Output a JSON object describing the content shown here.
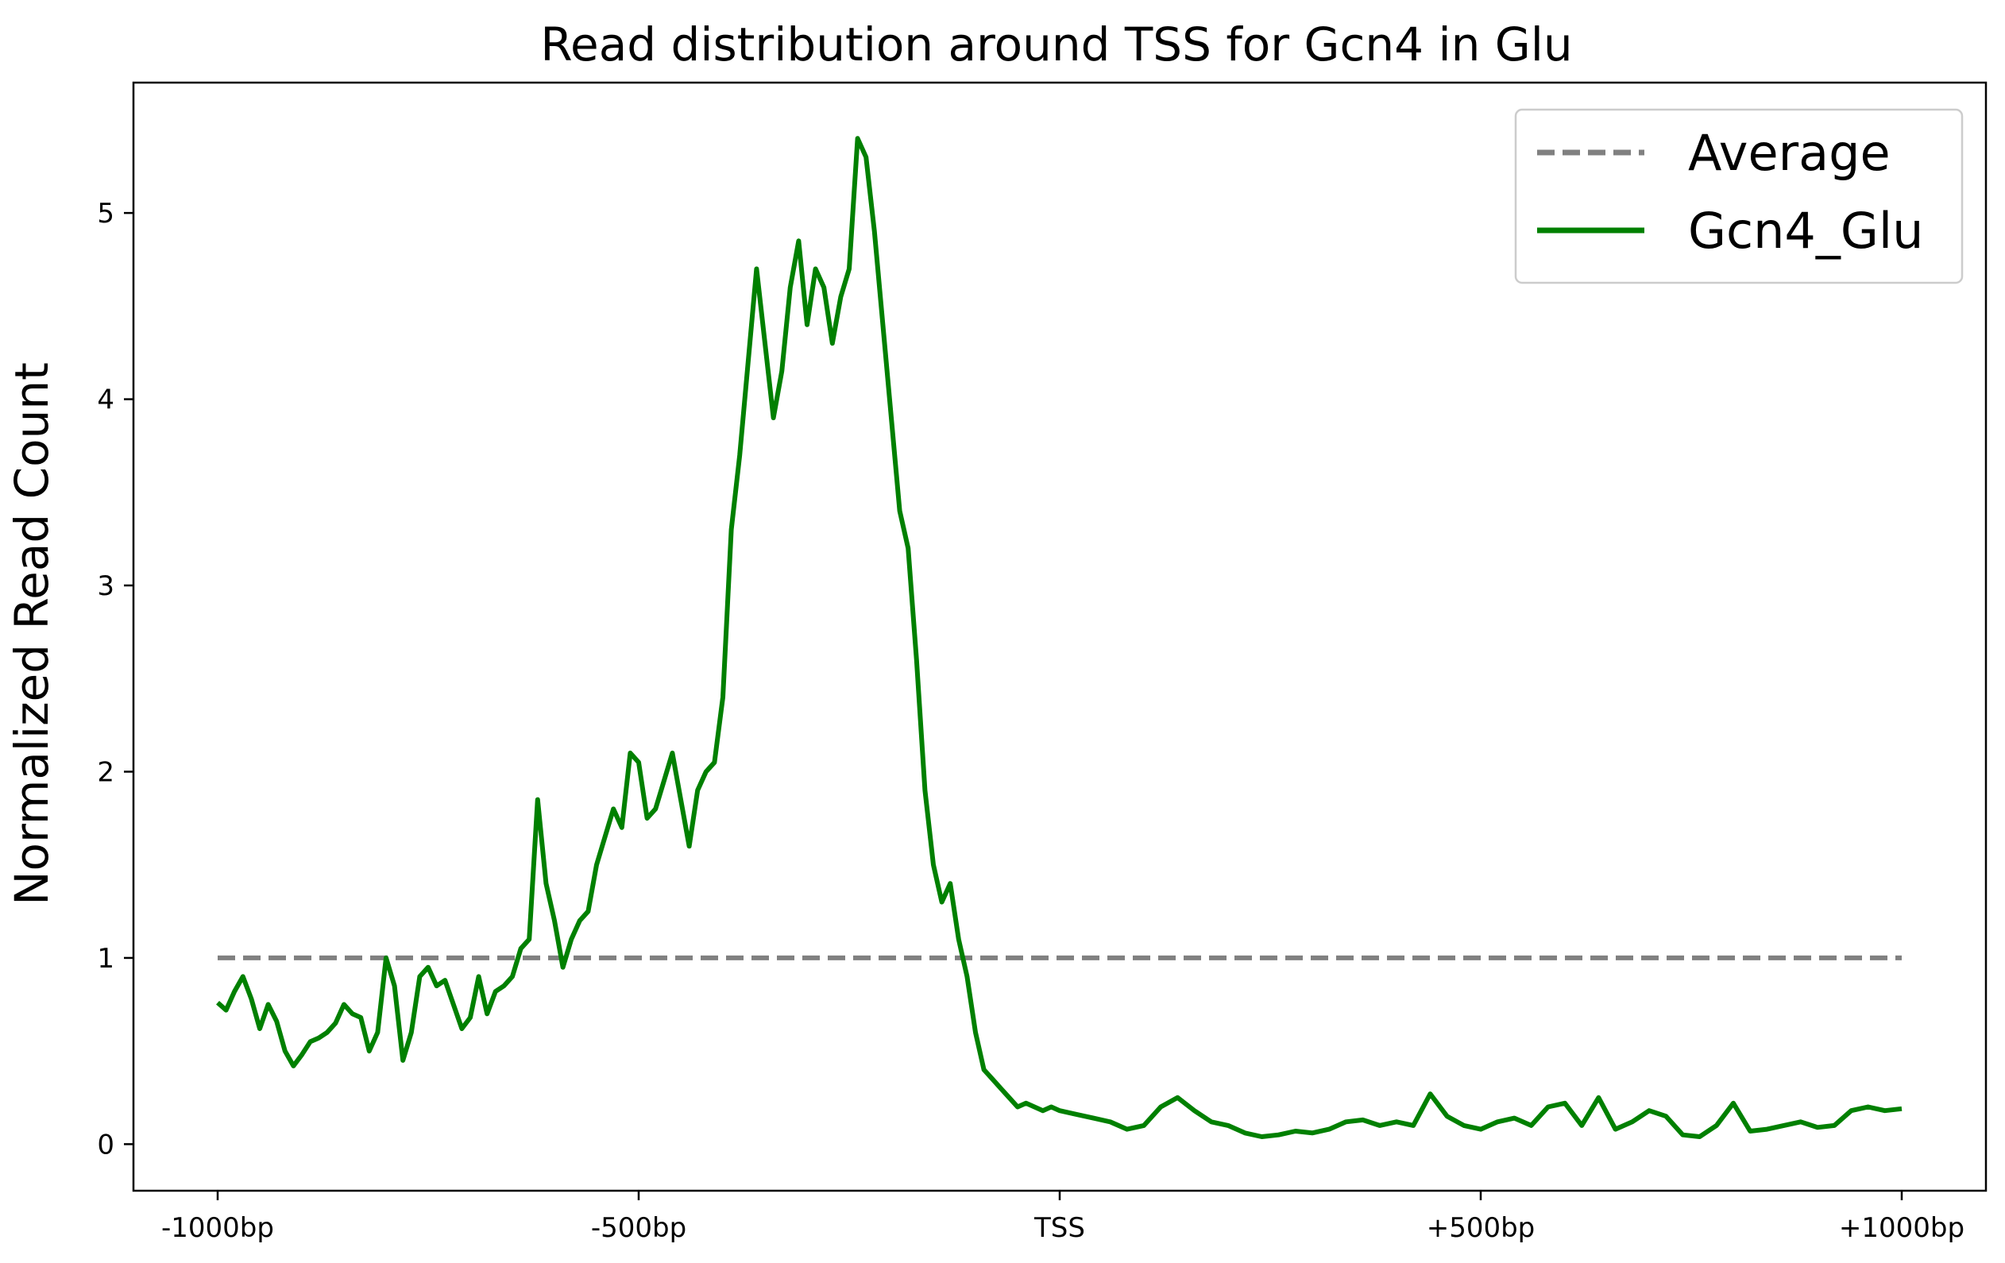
{
  "chart_data": {
    "type": "line",
    "title": "Read distribution around TSS for Gcn4 in Glu",
    "xlabel": "",
    "ylabel": "Normalized Read Count",
    "xlim": [
      -1100,
      1100
    ],
    "ylim": [
      -0.25,
      5.7
    ],
    "x_ticks": [
      {
        "value": -1000,
        "label": "-1000bp"
      },
      {
        "value": -500,
        "label": "-500bp"
      },
      {
        "value": 0,
        "label": "TSS"
      },
      {
        "value": 500,
        "label": "+500bp"
      },
      {
        "value": 1000,
        "label": "+1000bp"
      }
    ],
    "y_ticks": [
      {
        "value": 0,
        "label": "0"
      },
      {
        "value": 1,
        "label": "1"
      },
      {
        "value": 2,
        "label": "2"
      },
      {
        "value": 3,
        "label": "3"
      },
      {
        "value": 4,
        "label": "4"
      },
      {
        "value": 5,
        "label": "5"
      }
    ],
    "grid": false,
    "legend_position": "top-right",
    "series": [
      {
        "name": "Average",
        "color": "#808080",
        "style": "dashed",
        "x": [
          -1000,
          1000
        ],
        "y": [
          1,
          1
        ]
      },
      {
        "name": "Gcn4_Glu",
        "color": "#008000",
        "style": "solid",
        "x": [
          -1000,
          -990,
          -980,
          -970,
          -960,
          -950,
          -940,
          -930,
          -920,
          -910,
          -900,
          -890,
          -880,
          -870,
          -860,
          -850,
          -840,
          -830,
          -820,
          -810,
          -800,
          -790,
          -780,
          -770,
          -760,
          -750,
          -740,
          -730,
          -720,
          -710,
          -700,
          -690,
          -680,
          -670,
          -660,
          -650,
          -640,
          -630,
          -620,
          -610,
          -600,
          -590,
          -580,
          -570,
          -560,
          -550,
          -540,
          -530,
          -520,
          -510,
          -500,
          -490,
          -480,
          -470,
          -460,
          -450,
          -440,
          -430,
          -420,
          -410,
          -400,
          -390,
          -380,
          -370,
          -360,
          -350,
          -340,
          -330,
          -320,
          -310,
          -300,
          -290,
          -280,
          -270,
          -260,
          -250,
          -240,
          -230,
          -220,
          -210,
          -200,
          -190,
          -180,
          -170,
          -160,
          -150,
          -140,
          -130,
          -120,
          -110,
          -100,
          -90,
          -80,
          -70,
          -60,
          -50,
          -40,
          -30,
          -20,
          -10,
          0,
          20,
          40,
          60,
          80,
          100,
          120,
          140,
          160,
          180,
          200,
          220,
          240,
          260,
          280,
          300,
          320,
          340,
          360,
          380,
          400,
          420,
          440,
          460,
          480,
          500,
          520,
          540,
          560,
          580,
          600,
          620,
          640,
          660,
          680,
          700,
          720,
          740,
          760,
          780,
          800,
          820,
          840,
          860,
          880,
          900,
          920,
          940,
          960,
          980,
          1000
        ],
        "y": [
          0.76,
          0.72,
          0.82,
          0.9,
          0.78,
          0.62,
          0.75,
          0.66,
          0.5,
          0.42,
          0.48,
          0.55,
          0.57,
          0.6,
          0.65,
          0.75,
          0.7,
          0.68,
          0.5,
          0.6,
          1.0,
          0.85,
          0.45,
          0.6,
          0.9,
          0.95,
          0.85,
          0.88,
          0.75,
          0.62,
          0.68,
          0.9,
          0.7,
          0.82,
          0.85,
          0.9,
          1.05,
          1.1,
          1.85,
          1.4,
          1.2,
          0.95,
          1.1,
          1.2,
          1.25,
          1.5,
          1.65,
          1.8,
          1.7,
          2.1,
          2.05,
          1.75,
          1.8,
          1.95,
          2.1,
          1.85,
          1.6,
          1.9,
          2.0,
          2.05,
          2.4,
          3.3,
          3.7,
          4.2,
          4.7,
          4.3,
          3.9,
          4.15,
          4.6,
          4.85,
          4.4,
          4.7,
          4.6,
          4.3,
          4.55,
          4.7,
          5.4,
          5.3,
          4.9,
          4.4,
          3.9,
          3.4,
          3.2,
          2.6,
          1.9,
          1.5,
          1.3,
          1.4,
          1.1,
          0.9,
          0.6,
          0.4,
          0.35,
          0.3,
          0.25,
          0.2,
          0.22,
          0.2,
          0.18,
          0.2,
          0.18,
          0.16,
          0.14,
          0.12,
          0.08,
          0.1,
          0.2,
          0.25,
          0.18,
          0.12,
          0.1,
          0.06,
          0.04,
          0.05,
          0.07,
          0.06,
          0.08,
          0.12,
          0.13,
          0.1,
          0.12,
          0.1,
          0.27,
          0.15,
          0.1,
          0.08,
          0.12,
          0.14,
          0.1,
          0.2,
          0.22,
          0.1,
          0.25,
          0.08,
          0.12,
          0.18,
          0.15,
          0.05,
          0.04,
          0.1,
          0.22,
          0.07,
          0.08,
          0.1,
          0.12,
          0.09,
          0.1,
          0.18,
          0.2,
          0.18,
          0.19
        ]
      }
    ]
  }
}
